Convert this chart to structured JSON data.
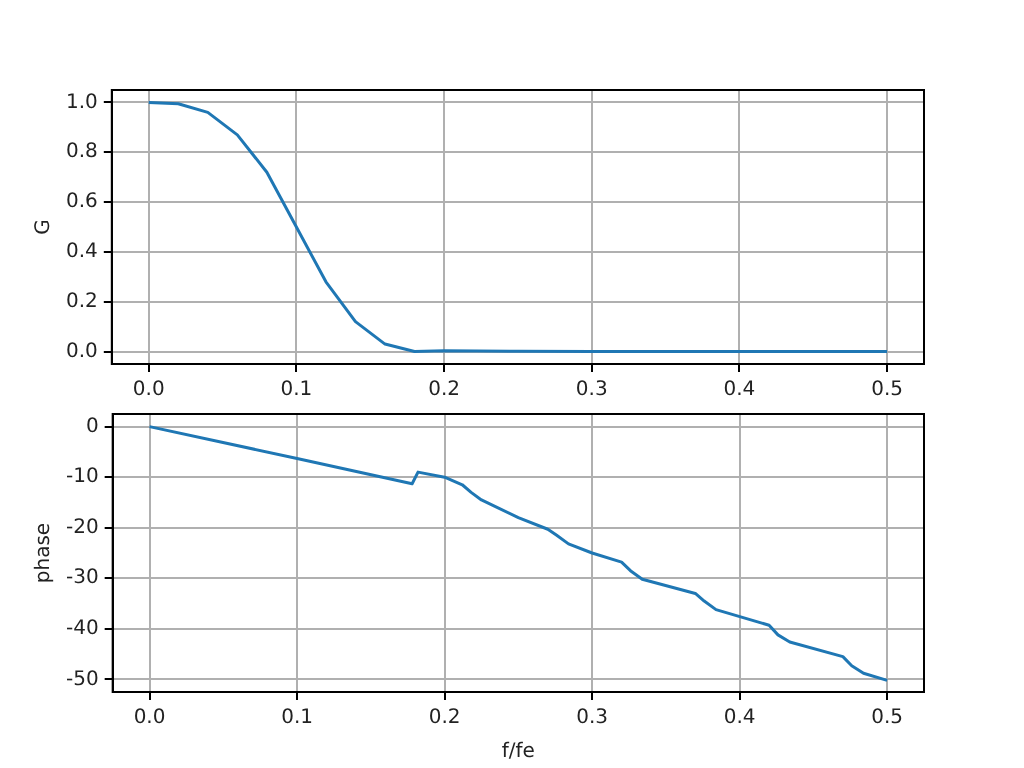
{
  "chart_data": [
    {
      "type": "line",
      "ylabel": "G",
      "xlim": [
        -0.025,
        0.525
      ],
      "xticks": [
        {
          "value": 0,
          "label": "0.0"
        },
        0.1,
        0.2,
        0.3,
        0.4,
        0.5
      ],
      "ylim": [
        -0.05,
        1.05
      ],
      "yticks": [
        {
          "value": 0,
          "label": "0.0"
        },
        0.2,
        0.4,
        0.6,
        0.8,
        {
          "value": 1,
          "label": "1.0"
        }
      ],
      "grid": true,
      "marker": "none",
      "line_style": "solid",
      "series": [
        {
          "color": "#1f77b4",
          "x": [
            0,
            0.02,
            0.04,
            0.06,
            0.08,
            0.1,
            0.12,
            0.14,
            0.16,
            0.18,
            0.2,
            0.25,
            0.3,
            0.4,
            0.5
          ],
          "values": [
            1,
            0.995,
            0.96,
            0.87,
            0.72,
            0.5,
            0.28,
            0.12,
            0.03,
            0,
            0.003,
            0.001,
            0,
            0,
            0
          ]
        }
      ]
    },
    {
      "type": "line",
      "xlabel": "f/fe",
      "ylabel": "phase",
      "xlim": [
        -0.025,
        0.525
      ],
      "xticks": [
        {
          "value": 0,
          "label": "0.0"
        },
        0.1,
        0.2,
        0.3,
        0.4,
        0.5
      ],
      "ylim": [
        -52.5,
        2.5
      ],
      "yticks": [
        -50,
        -40,
        -30,
        -20,
        -10,
        0
      ],
      "grid": true,
      "marker": "none",
      "line_style": "solid",
      "series": [
        {
          "color": "#1f77b4",
          "x": [
            0,
            0.1,
            0.178,
            0.182,
            0.2,
            0.212,
            0.218,
            0.225,
            0.25,
            0.27,
            0.276,
            0.284,
            0.3,
            0.32,
            0.326,
            0.334,
            0.37,
            0.376,
            0.384,
            0.42,
            0.426,
            0.434,
            0.47,
            0.476,
            0.484,
            0.5
          ],
          "values": [
            0,
            -6.3,
            -11.3,
            -9,
            -10,
            -11.5,
            -13,
            -14.5,
            -18,
            -20.3,
            -21.5,
            -23.2,
            -25,
            -26.8,
            -28.5,
            -30.2,
            -33,
            -34.5,
            -36.2,
            -39.3,
            -41.2,
            -42.6,
            -45.5,
            -47.3,
            -48.8,
            -50.2
          ]
        }
      ]
    }
  ]
}
